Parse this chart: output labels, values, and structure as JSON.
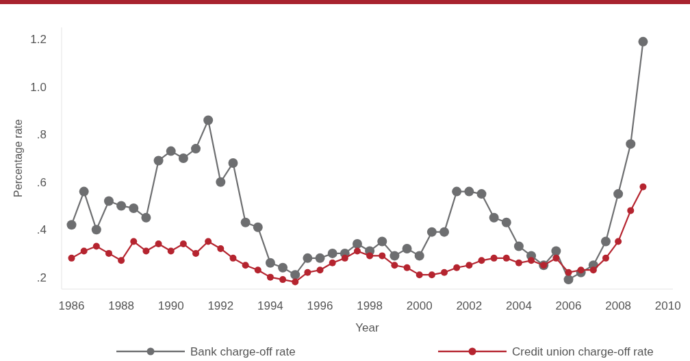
{
  "chart_data": {
    "type": "line",
    "xlabel": "Year",
    "ylabel": "Percentage rate",
    "x": [
      1986,
      1986.5,
      1987,
      1987.5,
      1988,
      1988.5,
      1989,
      1989.5,
      1990,
      1990.5,
      1991,
      1991.5,
      1992,
      1992.5,
      1993,
      1993.5,
      1994,
      1994.5,
      1995,
      1995.5,
      1996,
      1996.5,
      1997,
      1997.5,
      1998,
      1998.5,
      1999,
      1999.5,
      2000,
      2000.5,
      2001,
      2001.5,
      2002,
      2002.5,
      2003,
      2003.5,
      2004,
      2004.5,
      2005,
      2005.5,
      2006,
      2006.5,
      2007,
      2007.5,
      2008,
      2008.5,
      2009
    ],
    "series": [
      {
        "name": "Bank charge-off rate",
        "color": "#6d6e70",
        "values": [
          0.42,
          0.56,
          0.4,
          0.52,
          0.5,
          0.49,
          0.45,
          0.69,
          0.73,
          0.7,
          0.74,
          0.86,
          0.6,
          0.68,
          0.43,
          0.41,
          0.26,
          0.24,
          0.21,
          0.28,
          0.28,
          0.3,
          0.3,
          0.34,
          0.31,
          0.35,
          0.29,
          0.32,
          0.29,
          0.39,
          0.39,
          0.56,
          0.56,
          0.55,
          0.45,
          0.43,
          0.33,
          0.29,
          0.25,
          0.31,
          0.19,
          0.22,
          0.25,
          0.35,
          0.55,
          0.76,
          1.19
        ]
      },
      {
        "name": "Credit union charge-off rate",
        "color": "#b5242f",
        "values": [
          0.28,
          0.31,
          0.33,
          0.3,
          0.27,
          0.35,
          0.31,
          0.34,
          0.31,
          0.34,
          0.3,
          0.35,
          0.32,
          0.28,
          0.25,
          0.23,
          0.2,
          0.19,
          0.18,
          0.22,
          0.23,
          0.26,
          0.28,
          0.31,
          0.29,
          0.29,
          0.25,
          0.24,
          0.21,
          0.21,
          0.22,
          0.24,
          0.25,
          0.27,
          0.28,
          0.28,
          0.26,
          0.27,
          0.25,
          0.28,
          0.22,
          0.23,
          0.23,
          0.28,
          0.35,
          0.48,
          0.58
        ]
      }
    ],
    "xlim": [
      1985.6,
      2010.2
    ],
    "xticks": [
      1986,
      1988,
      1990,
      1992,
      1994,
      1996,
      1998,
      2000,
      2002,
      2004,
      2006,
      2008,
      2010
    ],
    "ylim": [
      0.15,
      1.25
    ],
    "yticks": [
      {
        "value": 0.2,
        "label": ".2"
      },
      {
        "value": 0.4,
        "label": ".4"
      },
      {
        "value": 0.6,
        "label": ".6"
      },
      {
        "value": 0.8,
        "label": ".8"
      },
      {
        "value": 1.0,
        "label": "1.0"
      },
      {
        "value": 1.2,
        "label": "1.2"
      }
    ],
    "grid": false,
    "legend": "bottom",
    "marker": "circle",
    "line_style": "solid"
  }
}
